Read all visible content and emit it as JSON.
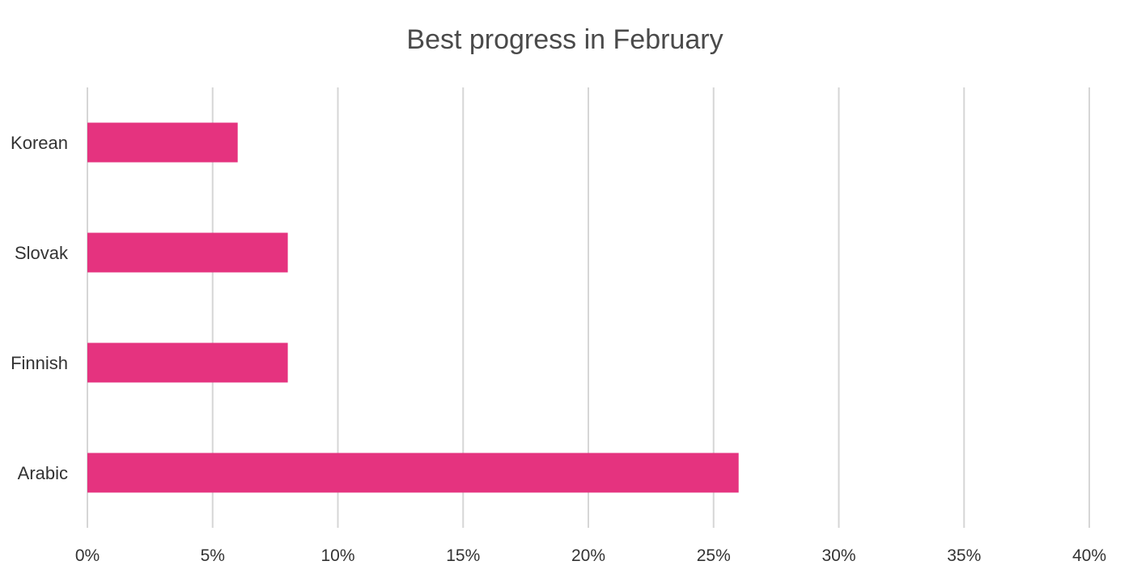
{
  "chart_data": {
    "type": "bar",
    "orientation": "horizontal",
    "title": "Best progress in February",
    "categories": [
      "Korean",
      "Slovak",
      "Finnish",
      "Arabic"
    ],
    "values": [
      0.06,
      0.08,
      0.08,
      0.26
    ],
    "xlim": [
      0,
      0.4
    ],
    "xticks": [
      0,
      0.05,
      0.1,
      0.15,
      0.2,
      0.25,
      0.3,
      0.35,
      0.4
    ],
    "xtick_labels": [
      "0%",
      "5%",
      "10%",
      "15%",
      "20%",
      "25%",
      "30%",
      "35%",
      "40%"
    ],
    "xlabel": "",
    "ylabel": "",
    "grid": "vertical",
    "legend": "none",
    "bar_color": "#e5337f",
    "grid_color": "#d6d6d6"
  }
}
